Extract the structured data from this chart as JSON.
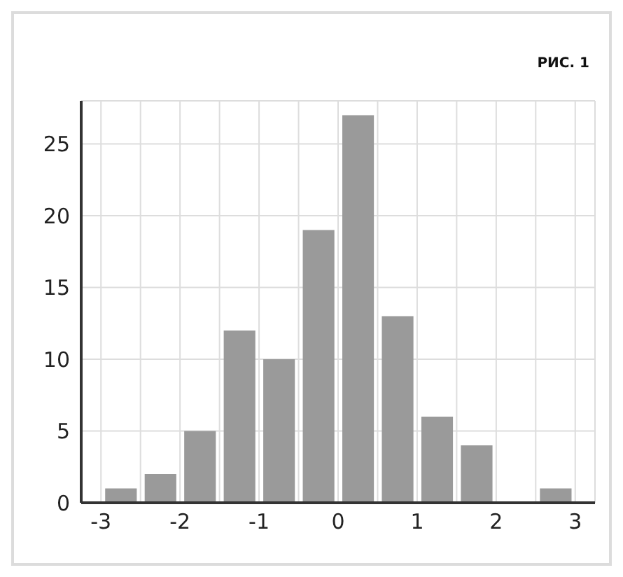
{
  "chart_data": {
    "type": "histogram",
    "title": "РИС. 1",
    "bins": [
      -3,
      -2.5,
      -2,
      -1.5,
      -1,
      -0.5,
      0,
      0.5,
      1,
      1.5,
      2,
      2.5,
      3
    ],
    "values": [
      1,
      2,
      5,
      12,
      10,
      19,
      27,
      13,
      6,
      4,
      0,
      1
    ],
    "color": "#9a9a9a",
    "xlim": [
      -3.25,
      3.25
    ],
    "xticks": [
      -3,
      {
        "value": -2.5,
        "label": null
      },
      -2,
      {
        "value": -1.5,
        "label": null
      },
      -1,
      {
        "value": -0.5,
        "label": null
      },
      0,
      {
        "value": 0.5,
        "label": null
      },
      1,
      {
        "value": 1.5,
        "label": null
      },
      2,
      {
        "value": 2.5,
        "label": null
      },
      3
    ],
    "ylim": [
      0,
      28
    ],
    "yticks": [
      0,
      5,
      10,
      15,
      20,
      25
    ],
    "grid": true
  }
}
